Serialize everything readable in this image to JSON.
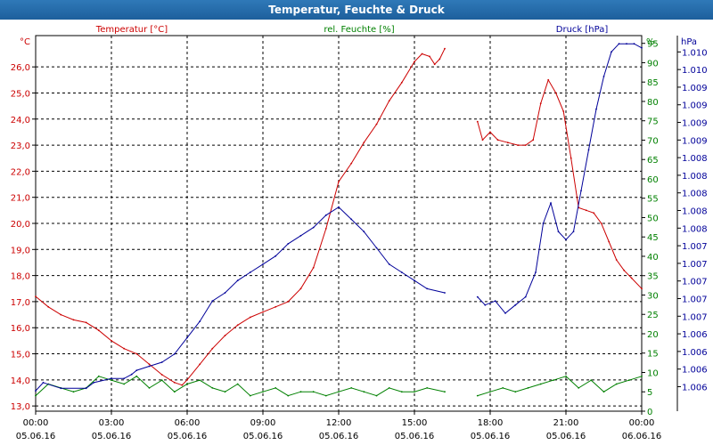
{
  "window": {
    "title": "Temperatur, Feuchte & Druck"
  },
  "chart_data": {
    "type": "line",
    "title": "Temperatur, Feuchte & Druck",
    "series_labels": {
      "temperature": "Temperatur [°C]",
      "humidity": "rel. Feuchte [%]",
      "pressure": "Druck [hPa]"
    },
    "units": {
      "temperature": "°C",
      "humidity": "%",
      "pressure": "hPa"
    },
    "colors": {
      "temperature": "#cc0000",
      "humidity": "#008000",
      "pressure": "#000099",
      "grid": "#000000"
    },
    "x_ticks": [
      {
        "time": "00:00",
        "date": "05.06.16"
      },
      {
        "time": "03:00",
        "date": "05.06.16"
      },
      {
        "time": "06:00",
        "date": "05.06.16"
      },
      {
        "time": "09:00",
        "date": "05.06.16"
      },
      {
        "time": "12:00",
        "date": "05.06.16"
      },
      {
        "time": "15:00",
        "date": "05.06.16"
      },
      {
        "time": "18:00",
        "date": "05.06.16"
      },
      {
        "time": "21:00",
        "date": "05.06.16"
      },
      {
        "time": "00:00",
        "date": "06.06.16"
      }
    ],
    "xlim_hours": [
      0,
      24
    ],
    "y_left": {
      "ylim": [
        12.8,
        27.2
      ],
      "ticks": [
        "13,0",
        "14,0",
        "15,0",
        "16,0",
        "17,0",
        "18,0",
        "19,0",
        "20,0",
        "21,0",
        "22,0",
        "23,0",
        "24,0",
        "25,0",
        "26,0"
      ]
    },
    "y_humidity": {
      "ylim": [
        0,
        97
      ],
      "ticks": [
        "0",
        "5",
        "10",
        "15",
        "20",
        "25",
        "30",
        "35",
        "40",
        "45",
        "50",
        "55",
        "60",
        "65",
        "70",
        "75",
        "80",
        "85",
        "90",
        "95"
      ]
    },
    "y_pressure": {
      "ylim": [
        1005.7,
        1010.3
      ],
      "ticks": [
        "1.006",
        "1.006",
        "1.006",
        "1.006",
        "1.007",
        "1.007",
        "1.007",
        "1.007",
        "1.007",
        "1.008",
        "1.008",
        "1.008",
        "1.008",
        "1.008",
        "1.009",
        "1.009",
        "1.009",
        "1.009",
        "1.010",
        "1.010"
      ]
    },
    "temperature": [
      {
        "x": 0,
        "y": 17.2
      },
      {
        "x": 0.5,
        "y": 16.8
      },
      {
        "x": 1,
        "y": 16.5
      },
      {
        "x": 1.5,
        "y": 16.3
      },
      {
        "x": 2,
        "y": 16.2
      },
      {
        "x": 2.5,
        "y": 15.9
      },
      {
        "x": 3,
        "y": 15.5
      },
      {
        "x": 3.5,
        "y": 15.2
      },
      {
        "x": 4,
        "y": 15.0
      },
      {
        "x": 4.5,
        "y": 14.6
      },
      {
        "x": 5,
        "y": 14.2
      },
      {
        "x": 5.5,
        "y": 13.9
      },
      {
        "x": 5.8,
        "y": 13.8
      },
      {
        "x": 6,
        "y": 14.0
      },
      {
        "x": 6.5,
        "y": 14.6
      },
      {
        "x": 7,
        "y": 15.2
      },
      {
        "x": 7.5,
        "y": 15.7
      },
      {
        "x": 8,
        "y": 16.1
      },
      {
        "x": 8.5,
        "y": 16.4
      },
      {
        "x": 9,
        "y": 16.6
      },
      {
        "x": 9.5,
        "y": 16.8
      },
      {
        "x": 10,
        "y": 17.0
      },
      {
        "x": 10.5,
        "y": 17.5
      },
      {
        "x": 11,
        "y": 18.3
      },
      {
        "x": 11.5,
        "y": 19.8
      },
      {
        "x": 12,
        "y": 21.6
      },
      {
        "x": 12.5,
        "y": 22.3
      },
      {
        "x": 13,
        "y": 23.1
      },
      {
        "x": 13.5,
        "y": 23.8
      },
      {
        "x": 14,
        "y": 24.7
      },
      {
        "x": 14.5,
        "y": 25.4
      },
      {
        "x": 15,
        "y": 26.2
      },
      {
        "x": 15.3,
        "y": 26.5
      },
      {
        "x": 15.6,
        "y": 26.4
      },
      {
        "x": 15.8,
        "y": 26.1
      },
      {
        "x": 16.0,
        "y": 26.3
      },
      {
        "x": 16.2,
        "y": 26.7
      },
      {
        "x": "gap",
        "y": null
      },
      {
        "x": 17.5,
        "y": 23.9
      },
      {
        "x": 17.7,
        "y": 23.2
      },
      {
        "x": 18,
        "y": 23.5
      },
      {
        "x": 18.3,
        "y": 23.2
      },
      {
        "x": 18.7,
        "y": 23.1
      },
      {
        "x": 19.1,
        "y": 23.0
      },
      {
        "x": 19.4,
        "y": 23.0
      },
      {
        "x": 19.7,
        "y": 23.2
      },
      {
        "x": 20.0,
        "y": 24.6
      },
      {
        "x": 20.3,
        "y": 25.5
      },
      {
        "x": 20.6,
        "y": 25.0
      },
      {
        "x": 20.9,
        "y": 24.3
      },
      {
        "x": 21.2,
        "y": 22.5
      },
      {
        "x": 21.5,
        "y": 20.6
      },
      {
        "x": 21.8,
        "y": 20.5
      },
      {
        "x": 22.1,
        "y": 20.4
      },
      {
        "x": 22.4,
        "y": 20.0
      },
      {
        "x": 22.7,
        "y": 19.3
      },
      {
        "x": 23.0,
        "y": 18.6
      },
      {
        "x": 23.3,
        "y": 18.2
      },
      {
        "x": 23.6,
        "y": 17.9
      },
      {
        "x": 24,
        "y": 17.5
      }
    ],
    "humidity": [
      {
        "x": 0,
        "y": 4
      },
      {
        "x": 0.5,
        "y": 7
      },
      {
        "x": 1,
        "y": 6
      },
      {
        "x": 1.5,
        "y": 5
      },
      {
        "x": 2,
        "y": 6
      },
      {
        "x": 2.5,
        "y": 9
      },
      {
        "x": 3,
        "y": 8
      },
      {
        "x": 3.5,
        "y": 7
      },
      {
        "x": 4,
        "y": 9
      },
      {
        "x": 4.5,
        "y": 6
      },
      {
        "x": 5,
        "y": 8
      },
      {
        "x": 5.5,
        "y": 5
      },
      {
        "x": 6,
        "y": 7
      },
      {
        "x": 6.5,
        "y": 8
      },
      {
        "x": 7,
        "y": 6
      },
      {
        "x": 7.5,
        "y": 5
      },
      {
        "x": 8,
        "y": 7
      },
      {
        "x": 8.5,
        "y": 4
      },
      {
        "x": 9,
        "y": 5
      },
      {
        "x": 9.5,
        "y": 6
      },
      {
        "x": 10,
        "y": 4
      },
      {
        "x": 10.5,
        "y": 5
      },
      {
        "x": 11,
        "y": 5
      },
      {
        "x": 11.5,
        "y": 4
      },
      {
        "x": 12,
        "y": 5
      },
      {
        "x": 12.5,
        "y": 6
      },
      {
        "x": 13,
        "y": 5
      },
      {
        "x": 13.5,
        "y": 4
      },
      {
        "x": 14,
        "y": 6
      },
      {
        "x": 14.5,
        "y": 5
      },
      {
        "x": 15,
        "y": 5
      },
      {
        "x": 15.5,
        "y": 6
      },
      {
        "x": 16.2,
        "y": 5
      },
      {
        "x": "gap",
        "y": null
      },
      {
        "x": 17.5,
        "y": 4
      },
      {
        "x": 18,
        "y": 5
      },
      {
        "x": 18.5,
        "y": 6
      },
      {
        "x": 19,
        "y": 5
      },
      {
        "x": 19.5,
        "y": 6
      },
      {
        "x": 20,
        "y": 7
      },
      {
        "x": 20.5,
        "y": 8
      },
      {
        "x": 21,
        "y": 9
      },
      {
        "x": 21.5,
        "y": 6
      },
      {
        "x": 22,
        "y": 8
      },
      {
        "x": 22.5,
        "y": 5
      },
      {
        "x": 23,
        "y": 7
      },
      {
        "x": 23.5,
        "y": 8
      },
      {
        "x": 24,
        "y": 9
      }
    ],
    "pressure": [
      {
        "x": 0,
        "y": 1005.95
      },
      {
        "x": 0.3,
        "y": 1006.05
      },
      {
        "x": 1,
        "y": 1005.98
      },
      {
        "x": 2,
        "y": 1005.98
      },
      {
        "x": 2.3,
        "y": 1006.05
      },
      {
        "x": 3,
        "y": 1006.1
      },
      {
        "x": 3.5,
        "y": 1006.1
      },
      {
        "x": 3.8,
        "y": 1006.15
      },
      {
        "x": 4,
        "y": 1006.2
      },
      {
        "x": 4.5,
        "y": 1006.25
      },
      {
        "x": 5,
        "y": 1006.3
      },
      {
        "x": 5.5,
        "y": 1006.4
      },
      {
        "x": 6,
        "y": 1006.6
      },
      {
        "x": 6.5,
        "y": 1006.8
      },
      {
        "x": 7,
        "y": 1007.05
      },
      {
        "x": 7.5,
        "y": 1007.15
      },
      {
        "x": 8,
        "y": 1007.3
      },
      {
        "x": 8.5,
        "y": 1007.4
      },
      {
        "x": 9,
        "y": 1007.5
      },
      {
        "x": 9.5,
        "y": 1007.6
      },
      {
        "x": 10,
        "y": 1007.75
      },
      {
        "x": 10.5,
        "y": 1007.85
      },
      {
        "x": 11,
        "y": 1007.95
      },
      {
        "x": 11.5,
        "y": 1008.1
      },
      {
        "x": 12,
        "y": 1008.2
      },
      {
        "x": 12.5,
        "y": 1008.05
      },
      {
        "x": 13,
        "y": 1007.9
      },
      {
        "x": 13.5,
        "y": 1007.7
      },
      {
        "x": 14,
        "y": 1007.5
      },
      {
        "x": 14.5,
        "y": 1007.4
      },
      {
        "x": 15,
        "y": 1007.3
      },
      {
        "x": 15.5,
        "y": 1007.2
      },
      {
        "x": 16.2,
        "y": 1007.15
      },
      {
        "x": "gap",
        "y": null
      },
      {
        "x": 17.5,
        "y": 1007.1
      },
      {
        "x": 17.8,
        "y": 1007.0
      },
      {
        "x": 18.2,
        "y": 1007.05
      },
      {
        "x": 18.6,
        "y": 1006.9
      },
      {
        "x": 19,
        "y": 1007.0
      },
      {
        "x": 19.4,
        "y": 1007.1
      },
      {
        "x": 19.8,
        "y": 1007.4
      },
      {
        "x": 20.1,
        "y": 1008.0
      },
      {
        "x": 20.4,
        "y": 1008.25
      },
      {
        "x": 20.7,
        "y": 1007.9
      },
      {
        "x": 21,
        "y": 1007.8
      },
      {
        "x": 21.3,
        "y": 1007.9
      },
      {
        "x": 21.6,
        "y": 1008.4
      },
      {
        "x": 21.9,
        "y": 1008.9
      },
      {
        "x": 22.2,
        "y": 1009.4
      },
      {
        "x": 22.5,
        "y": 1009.8
      },
      {
        "x": 22.8,
        "y": 1010.1
      },
      {
        "x": 23.1,
        "y": 1010.2
      },
      {
        "x": 23.4,
        "y": 1010.2
      },
      {
        "x": 23.7,
        "y": 1010.2
      },
      {
        "x": 24,
        "y": 1010.15
      }
    ]
  }
}
